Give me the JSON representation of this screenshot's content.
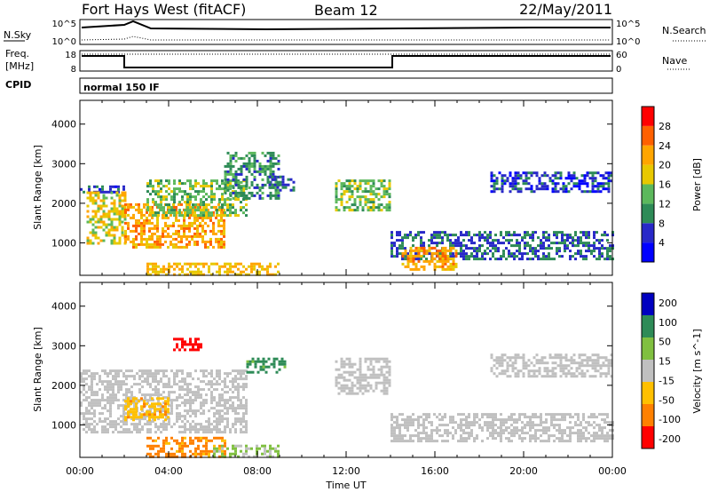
{
  "header": {
    "station": "Fort Hays West (fitACF)",
    "beam": "Beam 12",
    "date": "22/May/2011"
  },
  "noise_panel": {
    "left_label": "N.Sky",
    "right_label": "N.Search",
    "left_ticks": [
      "10^5",
      "10^0"
    ],
    "right_ticks": [
      "10^5",
      "10^0"
    ]
  },
  "freq_panel": {
    "left_label_1": "Freq.",
    "left_label_2": "[MHz]",
    "right_label": "Nave",
    "left_ticks": [
      "18",
      "8"
    ],
    "right_ticks": [
      "60",
      "0"
    ]
  },
  "cpid_panel": {
    "label": "CPID",
    "value": "normal 150 IF"
  },
  "colors": {
    "power": [
      "#0000ff",
      "#2828c8",
      "#2e8b57",
      "#5cb85c",
      "#e8c800",
      "#ffa500",
      "#ff6000",
      "#ff0000"
    ],
    "velocity": [
      "#ff0000",
      "#ff8000",
      "#ffc000",
      "#c0c0c0",
      "#80c040",
      "#2e8b57",
      "#0000c0"
    ]
  },
  "chart_data": [
    {
      "type": "heatmap",
      "title": "",
      "xlabel": "",
      "ylabel": "Slant Range [km]",
      "x_range_hours": [
        0,
        24
      ],
      "xticks": [
        "00:00",
        "04:00",
        "08:00",
        "12:00",
        "16:00",
        "20:00",
        "00:00"
      ],
      "ylim": [
        180,
        4600
      ],
      "yticks": [
        1000,
        2000,
        3000,
        4000
      ],
      "colorbar": {
        "label": "Power [dB]",
        "ticks": [
          "4",
          "8",
          "12",
          "16",
          "20",
          "24",
          "28"
        ],
        "range": [
          0,
          32
        ]
      },
      "echo_regions": [
        {
          "t0": 0.0,
          "t1": 2.0,
          "r0": 2300,
          "r1": 2450,
          "level": 6
        },
        {
          "t0": 0.3,
          "t1": 2.0,
          "r0": 1000,
          "r1": 2300,
          "level": 18
        },
        {
          "t0": 2.0,
          "t1": 6.5,
          "r0": 900,
          "r1": 2000,
          "level": 22
        },
        {
          "t0": 3.0,
          "t1": 7.5,
          "r0": 1700,
          "r1": 2600,
          "level": 14
        },
        {
          "t0": 6.5,
          "t1": 9.0,
          "r0": 2100,
          "r1": 3300,
          "level": 10
        },
        {
          "t0": 8.5,
          "t1": 9.6,
          "r0": 2300,
          "r1": 2700,
          "level": 8
        },
        {
          "t0": 3.0,
          "t1": 9.0,
          "r0": 200,
          "r1": 500,
          "level": 20
        },
        {
          "t0": 11.5,
          "t1": 14.0,
          "r0": 1800,
          "r1": 2600,
          "level": 14
        },
        {
          "t0": 14.0,
          "t1": 24.0,
          "r0": 600,
          "r1": 1300,
          "level": 8
        },
        {
          "t0": 14.5,
          "t1": 17.0,
          "r0": 300,
          "r1": 900,
          "level": 22
        },
        {
          "t0": 18.5,
          "t1": 24.0,
          "r0": 2300,
          "r1": 2800,
          "level": 6
        }
      ]
    },
    {
      "type": "heatmap",
      "title": "",
      "xlabel": "Time UT",
      "ylabel": "Slant Range [km]",
      "x_range_hours": [
        0,
        24
      ],
      "xticks": [
        "00:00",
        "04:00",
        "08:00",
        "12:00",
        "16:00",
        "20:00",
        "00:00"
      ],
      "ylim": [
        180,
        4600
      ],
      "yticks": [
        1000,
        2000,
        3000,
        4000
      ],
      "colorbar": {
        "label": "Velocity [m s^-1]",
        "ticks": [
          "-200",
          "-100",
          "-50",
          "-15",
          "15",
          "50",
          "100",
          "200"
        ],
        "range": [
          -250,
          250
        ]
      },
      "echo_regions": [
        {
          "t0": 0.0,
          "t1": 7.5,
          "r0": 800,
          "r1": 2400,
          "velocity": 0
        },
        {
          "t0": 2.0,
          "t1": 4.0,
          "r0": 1100,
          "r1": 1700,
          "velocity": -40
        },
        {
          "t0": 4.2,
          "t1": 5.5,
          "r0": 2900,
          "r1": 3200,
          "velocity": -220
        },
        {
          "t0": 7.5,
          "t1": 9.3,
          "r0": 2300,
          "r1": 2700,
          "velocity": 60
        },
        {
          "t0": 3.0,
          "t1": 6.5,
          "r0": 200,
          "r1": 700,
          "velocity": -60
        },
        {
          "t0": 6.0,
          "t1": 9.0,
          "r0": 200,
          "r1": 500,
          "velocity": 20
        },
        {
          "t0": 11.5,
          "t1": 14.0,
          "r0": 1800,
          "r1": 2700,
          "velocity": 0
        },
        {
          "t0": 14.0,
          "t1": 24.0,
          "r0": 600,
          "r1": 1300,
          "velocity": 0
        },
        {
          "t0": 18.5,
          "t1": 24.0,
          "r0": 2200,
          "r1": 2800,
          "velocity": 0
        }
      ]
    }
  ]
}
